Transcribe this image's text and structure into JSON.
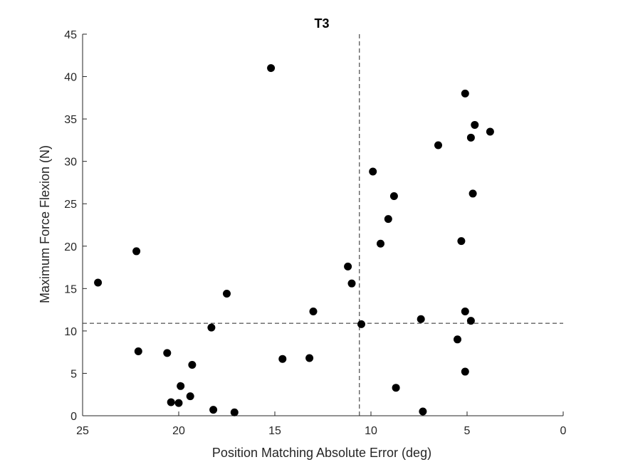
{
  "chart_data": {
    "type": "scatter",
    "title": "T3",
    "xlabel": "Position Matching Absolute Error (deg)",
    "ylabel": "Maximum Force Flexion (N)",
    "xlim": [
      0,
      25
    ],
    "x_reversed": true,
    "ylim": [
      0,
      45
    ],
    "xticks": [
      25,
      20,
      15,
      10,
      5,
      0
    ],
    "yticks": [
      0,
      5,
      10,
      15,
      20,
      25,
      30,
      35,
      40,
      45
    ],
    "grid": false,
    "reference_lines": {
      "vertical_x": 10.6,
      "horizontal_y": 10.9,
      "style": "dashed"
    },
    "series": [
      {
        "name": "points",
        "color": "#000000",
        "points": [
          {
            "x": 15.2,
            "y": 41.0
          },
          {
            "x": 24.2,
            "y": 15.7
          },
          {
            "x": 22.2,
            "y": 19.4
          },
          {
            "x": 22.1,
            "y": 7.6
          },
          {
            "x": 20.6,
            "y": 7.4
          },
          {
            "x": 19.9,
            "y": 3.5
          },
          {
            "x": 20.4,
            "y": 1.6
          },
          {
            "x": 20.0,
            "y": 1.5
          },
          {
            "x": 19.4,
            "y": 2.3
          },
          {
            "x": 19.3,
            "y": 6.0
          },
          {
            "x": 18.3,
            "y": 10.4
          },
          {
            "x": 17.5,
            "y": 14.4
          },
          {
            "x": 18.2,
            "y": 0.7
          },
          {
            "x": 17.1,
            "y": 0.4
          },
          {
            "x": 14.6,
            "y": 6.7
          },
          {
            "x": 13.2,
            "y": 6.8
          },
          {
            "x": 13.0,
            "y": 12.3
          },
          {
            "x": 11.2,
            "y": 17.6
          },
          {
            "x": 11.0,
            "y": 15.6
          },
          {
            "x": 10.5,
            "y": 10.8
          },
          {
            "x": 9.9,
            "y": 28.8
          },
          {
            "x": 9.5,
            "y": 20.3
          },
          {
            "x": 9.1,
            "y": 23.2
          },
          {
            "x": 8.8,
            "y": 25.9
          },
          {
            "x": 8.7,
            "y": 3.3
          },
          {
            "x": 7.4,
            "y": 11.4
          },
          {
            "x": 7.3,
            "y": 0.5
          },
          {
            "x": 6.5,
            "y": 31.9
          },
          {
            "x": 5.1,
            "y": 38.0
          },
          {
            "x": 4.6,
            "y": 34.3
          },
          {
            "x": 4.8,
            "y": 32.8
          },
          {
            "x": 3.8,
            "y": 33.5
          },
          {
            "x": 4.7,
            "y": 26.2
          },
          {
            "x": 5.3,
            "y": 20.6
          },
          {
            "x": 5.1,
            "y": 12.3
          },
          {
            "x": 4.8,
            "y": 11.2
          },
          {
            "x": 5.5,
            "y": 9.0
          },
          {
            "x": 5.1,
            "y": 5.2
          }
        ]
      }
    ]
  }
}
